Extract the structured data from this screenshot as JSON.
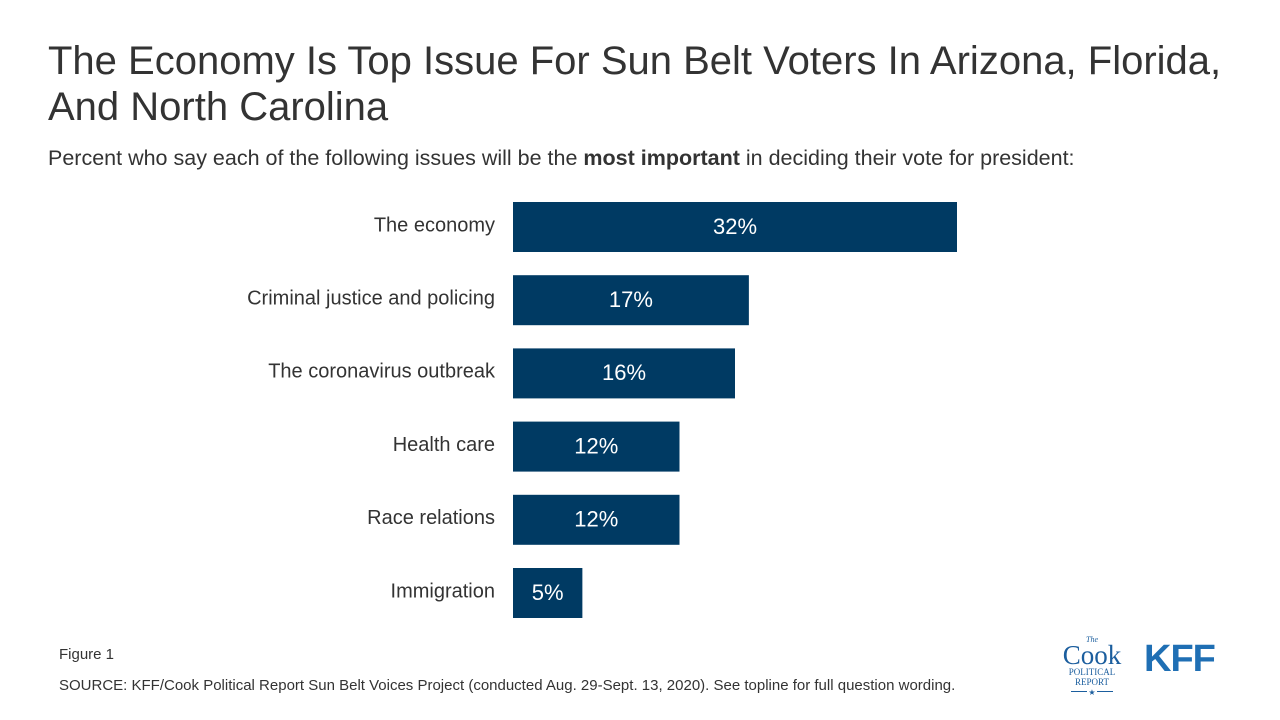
{
  "header": {
    "title": "The Economy Is Top Issue For Sun Belt Voters In Arizona, Florida, And North Carolina",
    "subtitle_before": "Percent who say each of the following issues will be the ",
    "subtitle_bold": "most important",
    "subtitle_after": " in deciding their vote for president:"
  },
  "chart_data": {
    "type": "bar",
    "orientation": "horizontal",
    "categories": [
      "The economy",
      "Criminal justice and policing",
      "The coronavirus outbreak",
      "Health care",
      "Race relations",
      "Immigration"
    ],
    "values": [
      32,
      17,
      16,
      12,
      12,
      5
    ],
    "value_labels": [
      "32%",
      "17%",
      "16%",
      "12%",
      "12%",
      "5%"
    ],
    "title": "",
    "xlabel": "",
    "ylabel": "",
    "bar_color": "#003a63",
    "label_color": "#ffffff",
    "grid": false,
    "legend": "none"
  },
  "footer": {
    "figure_label": "Figure 1",
    "source": "SOURCE: KFF/Cook Political Report Sun Belt Voices Project (conducted Aug. 29-Sept. 13, 2020). See topline for full question wording."
  },
  "logos": {
    "cook_the": "The",
    "cook_name": "Cook",
    "cook_line1": "POLITICAL",
    "cook_line2": "REPORT",
    "cook_star": "★",
    "kff": "KFF"
  },
  "colors": {
    "bar": "#003a63",
    "title_text": "#333333",
    "cook_blue": "#1b5e9e",
    "kff_blue": "#1f6fb4"
  }
}
